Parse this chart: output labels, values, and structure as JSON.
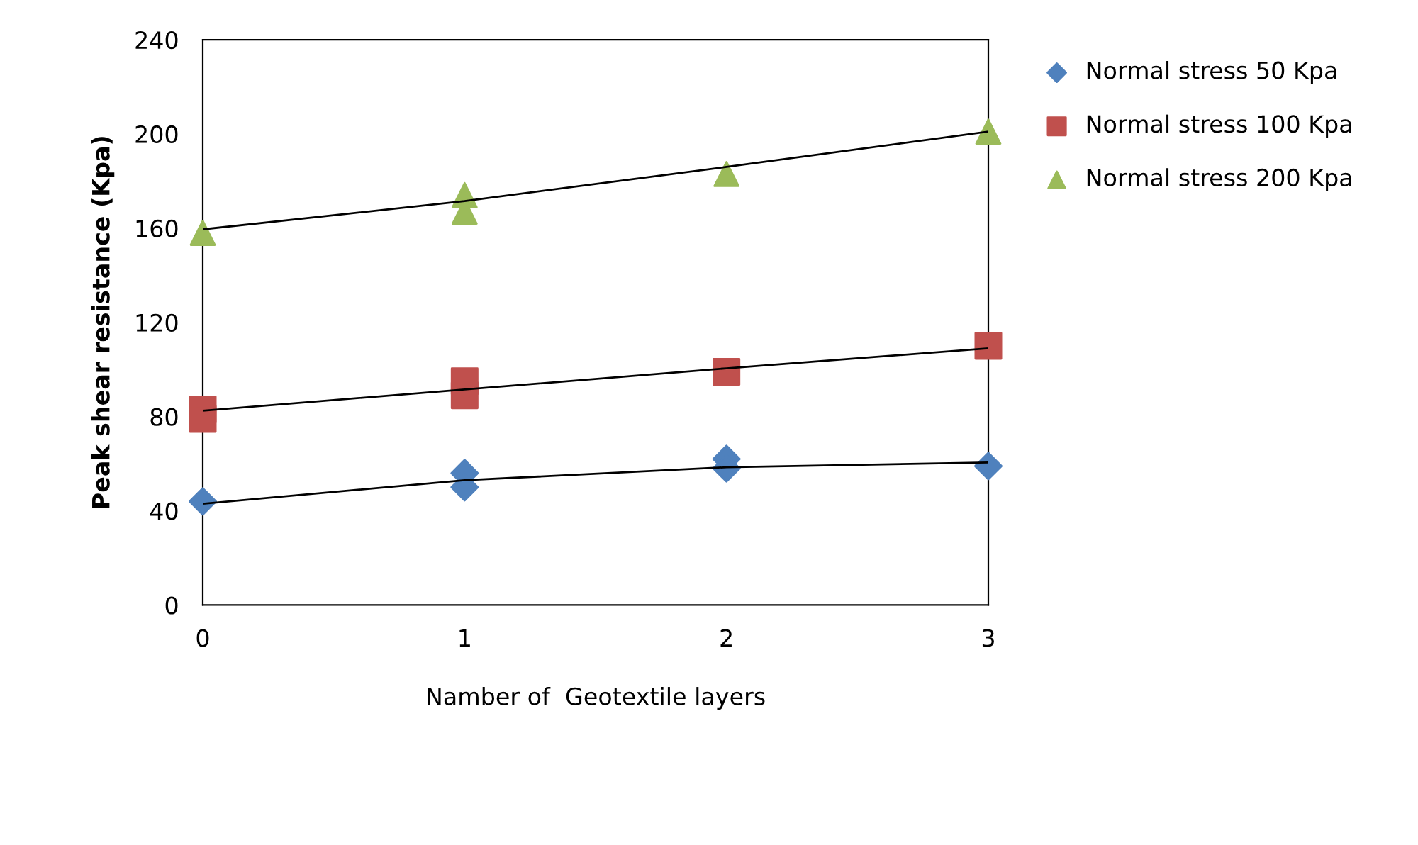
{
  "chart_data": {
    "type": "scatter",
    "xlabel": "Namber of  Geotextile layers",
    "ylabel": "Peak shear resistance (Kpa)",
    "xlim": [
      0,
      3
    ],
    "xticks": [
      0,
      1,
      2,
      3
    ],
    "ylim": [
      0,
      240
    ],
    "yticks": [
      0,
      40,
      80,
      120,
      160,
      200,
      240
    ],
    "grid": false,
    "legend": "right",
    "series": [
      {
        "name": "Normal stress 50 Kpa",
        "color": "#4f81bd",
        "marker": "diamond",
        "x": [
          0,
          1,
          1,
          2,
          2,
          3
        ],
        "values": [
          44,
          56,
          50,
          62,
          58,
          59
        ]
      },
      {
        "name": "Normal stress 100 Kpa",
        "color": "#c0504d",
        "marker": "square",
        "x": [
          0,
          0,
          1,
          1,
          2,
          3
        ],
        "values": [
          83,
          79,
          95,
          89,
          99,
          110
        ]
      },
      {
        "name": "Normal stress 200 Kpa",
        "color": "#9bbb59",
        "marker": "triangle",
        "x": [
          0,
          1,
          1,
          2,
          3
        ],
        "values": [
          158,
          174,
          167,
          183,
          201
        ]
      },
      {
        "type": "line",
        "color": "#000000",
        "marker": "none",
        "x": [
          0,
          1,
          2,
          3
        ],
        "values": [
          43,
          53,
          58.5,
          60.5
        ]
      },
      {
        "type": "line",
        "color": "#000000",
        "marker": "none",
        "x": [
          0,
          1,
          2,
          3
        ],
        "values": [
          82.5,
          91.5,
          100.5,
          109
        ]
      },
      {
        "type": "line",
        "color": "#000000",
        "marker": "none",
        "x": [
          0,
          1,
          2,
          3
        ],
        "values": [
          159.5,
          171.5,
          186,
          201
        ]
      }
    ]
  }
}
